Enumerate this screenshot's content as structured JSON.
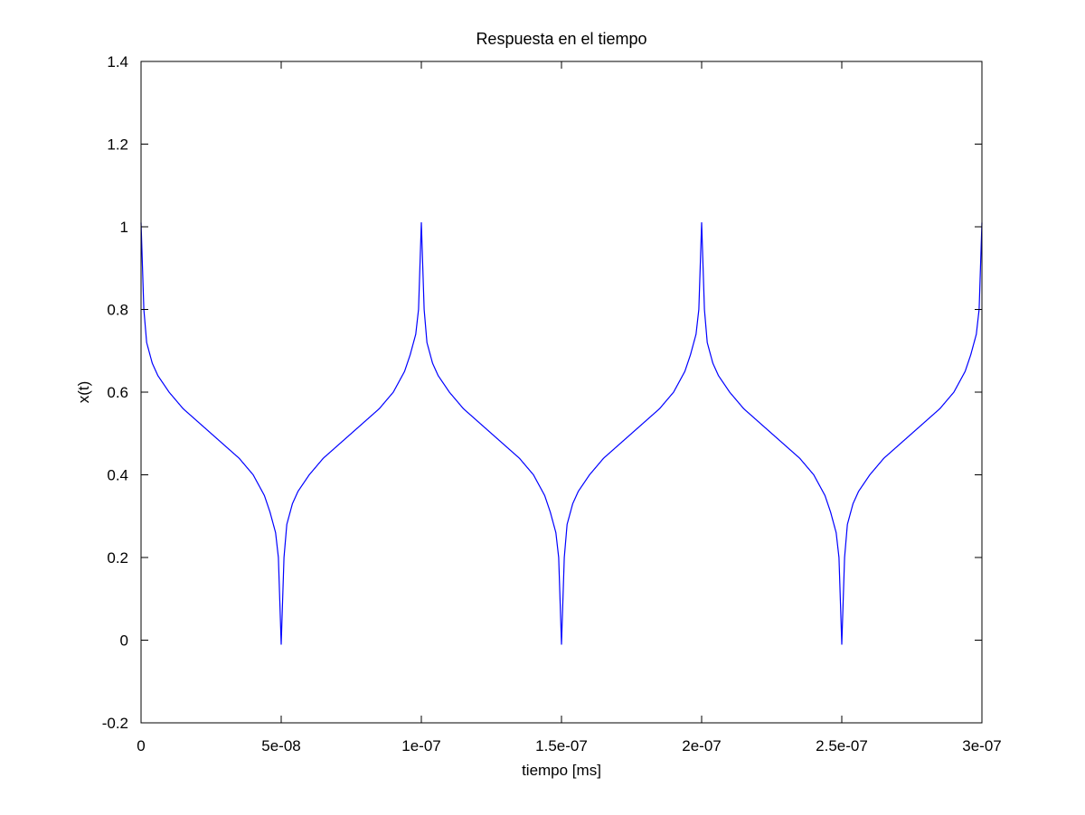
{
  "chart_data": {
    "type": "line",
    "title": "Respuesta en el tiempo",
    "xlabel": "tiempo [ms]",
    "ylabel": "x(t)",
    "xlim": [
      0,
      3e-07
    ],
    "ylim": [
      -0.2,
      1.4
    ],
    "xticks": [
      0,
      5e-08,
      1e-07,
      1.5e-07,
      2e-07,
      2.5e-07,
      3e-07
    ],
    "xtick_labels": [
      "0",
      "5e-08",
      "1e-07",
      "1.5e-07",
      "2e-07",
      "2.5e-07",
      "3e-07"
    ],
    "yticks": [
      -0.2,
      0,
      0.2,
      0.4,
      0.6,
      0.8,
      1,
      1.2,
      1.4
    ],
    "ytick_labels": [
      "-0.2",
      "0",
      "0.2",
      "0.4",
      "0.6",
      "0.8",
      "1",
      "1.2",
      "1.4"
    ],
    "grid": false,
    "legend": "none",
    "series": [
      {
        "color": "#0000ff",
        "period": 1e-07,
        "x": [
          0,
          1e-09,
          2e-09,
          4e-09,
          6e-09,
          1e-08,
          1.5e-08,
          2e-08,
          2.5e-08,
          3e-08,
          3.5e-08,
          4e-08,
          4.4e-08,
          4.6e-08,
          4.8e-08,
          4.9e-08,
          5e-08
        ],
        "values": [
          1.01,
          0.8,
          0.72,
          0.67,
          0.64,
          0.6,
          0.56,
          0.53,
          0.5,
          0.47,
          0.44,
          0.4,
          0.35,
          0.31,
          0.26,
          0.2,
          -0.01
        ]
      }
    ]
  }
}
